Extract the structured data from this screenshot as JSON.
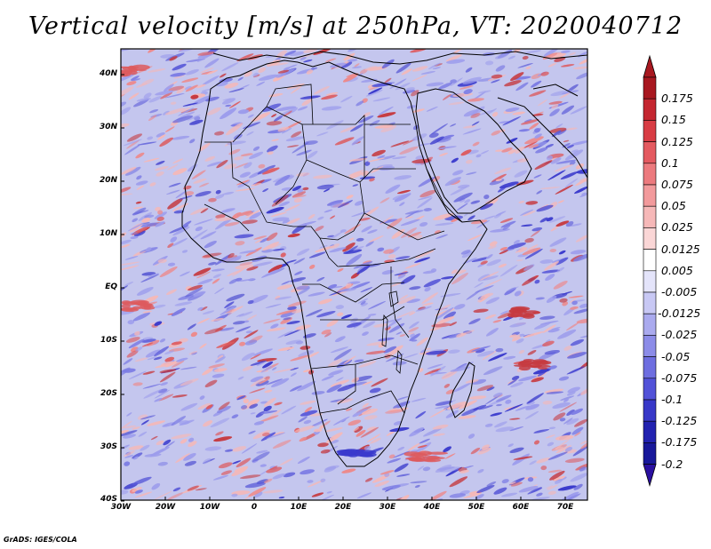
{
  "title": "Vertical velocity [m/s] at 250hPa, VT: 2020040712",
  "credit": "GrADS: IGES/COLA",
  "lon_labels": [
    "30W",
    "20W",
    "10W",
    "0",
    "10E",
    "20E",
    "30E",
    "40E",
    "50E",
    "60E",
    "70E"
  ],
  "lat_labels": [
    "40N",
    "30N",
    "20N",
    "10N",
    "EQ",
    "10S",
    "20S",
    "30S",
    "40S"
  ],
  "colorbar": {
    "labels": [
      "0.175",
      "0.15",
      "0.125",
      "0.1",
      "0.075",
      "0.05",
      "0.025",
      "0.0125",
      "0.005",
      "-0.005",
      "-0.0125",
      "-0.025",
      "-0.05",
      "-0.075",
      "-0.1",
      "-0.125",
      "-0.175",
      "-0.2"
    ],
    "colors": [
      "#a81820",
      "#c42630",
      "#d83c44",
      "#e45a60",
      "#ec7a7e",
      "#f29a9c",
      "#f6b8b8",
      "#fad6d6",
      "#ffffff",
      "#e4e4fa",
      "#c8c8f4",
      "#aaaaee",
      "#8c8ce8",
      "#6e6ee0",
      "#5252d8",
      "#3838c8",
      "#2222b0",
      "#18189a"
    ],
    "top_color": "#a81820",
    "bottom_color": "#2a10a0"
  },
  "field_colors": {
    "base": "#c4c6ee",
    "positive": [
      "#f4b8b8",
      "#ec8a8c",
      "#dd5a5e",
      "#c63a40"
    ],
    "negative": [
      "#9c9cec",
      "#7c7ce4",
      "#5a5ad8",
      "#3a3acc"
    ],
    "border": "#000000"
  }
}
